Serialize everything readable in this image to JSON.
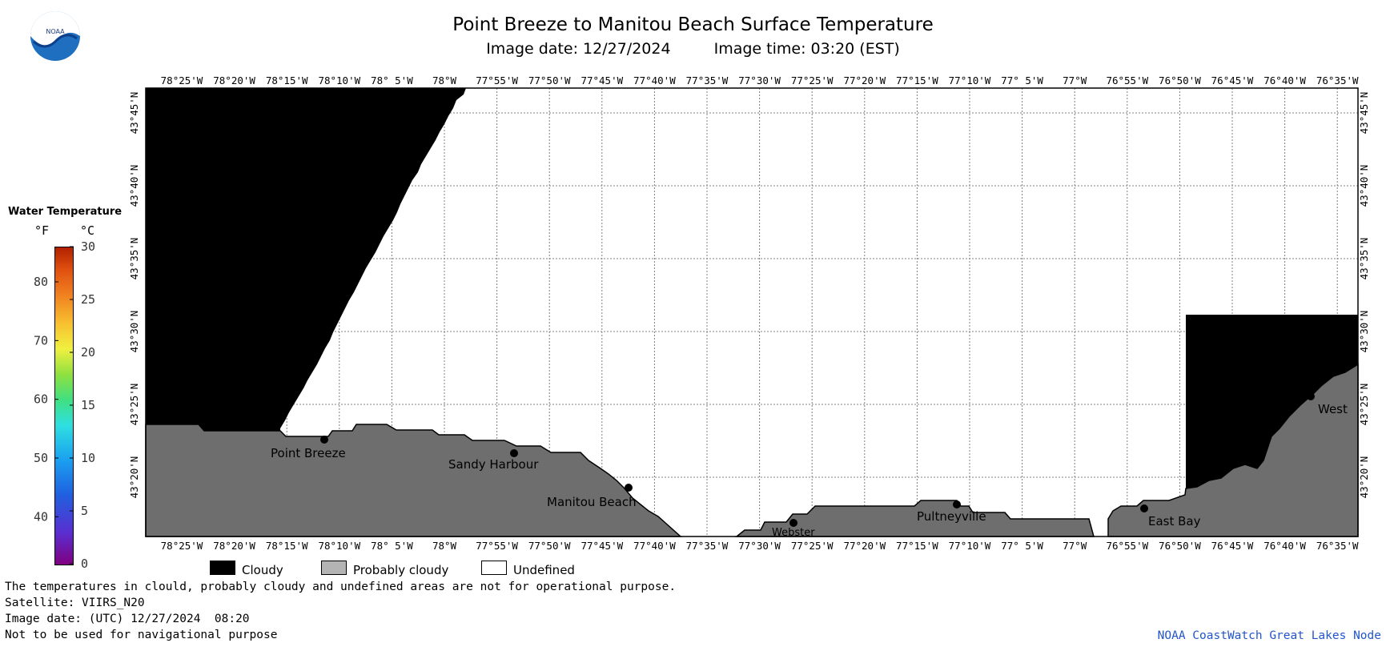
{
  "title": "Point Breeze to Manitou Beach Surface Temperature",
  "image_date_label": "Image date: 12/27/2024",
  "image_time_label": "Image time: 03:20 (EST)",
  "logo_text": "NOAA",
  "colorbar": {
    "title": "Water Temperature",
    "unit_f": "°F",
    "unit_c": "°C",
    "f_ticks": [
      "80",
      "70",
      "60",
      "50",
      "40"
    ],
    "c_ticks": [
      "30",
      "25",
      "20",
      "15",
      "10",
      "5",
      "0"
    ],
    "range_c": [
      0,
      30
    ],
    "range_f": [
      32,
      86
    ],
    "colors": [
      "#800080",
      "#5a2ed0",
      "#2060e0",
      "#1aa0f0",
      "#2ee0e0",
      "#40e080",
      "#90e040",
      "#f0f040",
      "#f8c030",
      "#f08020",
      "#e05010",
      "#b02000"
    ]
  },
  "map": {
    "lon_labels": [
      "78°25'W",
      "78°20'W",
      "78°15'W",
      "78°10'W",
      "78° 5'W",
      "78°W",
      "77°55'W",
      "77°50'W",
      "77°45'W",
      "77°40'W",
      "77°35'W",
      "77°30'W",
      "77°25'W",
      "77°20'W",
      "77°15'W",
      "77°10'W",
      "77° 5'W",
      "77°W",
      "76°55'W",
      "76°50'W",
      "76°45'W",
      "76°40'W",
      "76°35'W"
    ],
    "lat_labels": [
      "43°45'N",
      "43°40'N",
      "43°35'N",
      "43°30'N",
      "43°25'N",
      "43°20'N"
    ],
    "places": [
      {
        "name": "Point Breeze"
      },
      {
        "name": "Sandy Harbour"
      },
      {
        "name": "Manitou Beach"
      },
      {
        "name": "Webster"
      },
      {
        "name": "Pultneyville"
      },
      {
        "name": "East Bay"
      },
      {
        "name": "West"
      }
    ],
    "colors": {
      "cloudy": "#000000",
      "probably_cloudy": "#6e6e6e",
      "undefined": "#ffffff",
      "grid": "#808080"
    }
  },
  "legend": {
    "cloudy": "Cloudy",
    "probably_cloudy": "Probably cloudy",
    "undefined": "Undefined"
  },
  "footer": {
    "line1": "The temperatures in clould, probably cloudy and undefined areas are not for operational purpose.",
    "line2": "Satellite: VIIRS_N20",
    "line3": "Image date: (UTC) 12/27/2024  08:20",
    "line4": "Not to be used for navigational purpose",
    "credit": "NOAA CoastWatch Great Lakes Node"
  }
}
